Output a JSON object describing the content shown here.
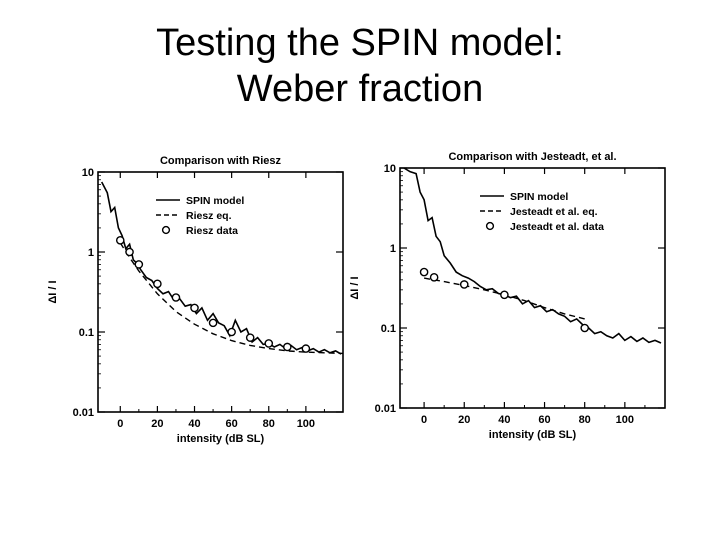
{
  "slide": {
    "title_line1": "Testing the SPIN model:",
    "title_line2": "Weber fraction"
  },
  "chart_data": [
    {
      "type": "line",
      "title": "Comparison with Riesz",
      "xlabel": "intensity (dB SL)",
      "ylabel": "ΔI / I",
      "x_ticks": [
        "0",
        "20",
        "40",
        "60",
        "80",
        "100"
      ],
      "y_ticks": [
        "0.01",
        "0.1",
        "1",
        "10"
      ],
      "xlim": [
        -12,
        120
      ],
      "ylim": [
        0.01,
        10
      ],
      "y_scale": "log",
      "legend_position": "top-right",
      "series": [
        {
          "name": "SPIN model",
          "style": "solid",
          "x": [
            -10,
            -7,
            -5,
            -3,
            -1,
            1,
            3,
            5,
            7,
            9,
            11,
            14,
            17,
            20,
            23,
            26,
            29,
            32,
            35,
            38,
            41,
            44,
            47,
            50,
            53,
            56,
            59,
            62,
            65,
            68,
            71,
            74,
            77,
            80,
            83,
            86,
            89,
            92,
            95,
            98,
            101,
            104,
            107,
            110,
            113,
            116,
            119
          ],
          "y": [
            7.5,
            5.5,
            3.2,
            3.6,
            2.0,
            1.6,
            1.1,
            1.25,
            0.8,
            0.72,
            0.6,
            0.48,
            0.44,
            0.35,
            0.3,
            0.32,
            0.25,
            0.26,
            0.21,
            0.22,
            0.17,
            0.2,
            0.14,
            0.17,
            0.13,
            0.12,
            0.09,
            0.14,
            0.1,
            0.11,
            0.075,
            0.085,
            0.07,
            0.072,
            0.065,
            0.07,
            0.062,
            0.068,
            0.06,
            0.064,
            0.058,
            0.062,
            0.056,
            0.06,
            0.055,
            0.058,
            0.053
          ]
        },
        {
          "name": "Riesz eq.",
          "style": "dashed",
          "x": [
            0,
            5,
            10,
            20,
            30,
            40,
            50,
            60,
            70,
            80,
            90,
            100,
            110,
            120
          ],
          "y": [
            1.3,
            0.85,
            0.58,
            0.3,
            0.18,
            0.125,
            0.095,
            0.078,
            0.068,
            0.062,
            0.058,
            0.056,
            0.055,
            0.054
          ]
        },
        {
          "name": "Riesz data",
          "style": "circles",
          "x": [
            0,
            5,
            10,
            20,
            30,
            40,
            50,
            60,
            70,
            80,
            90,
            100
          ],
          "y": [
            1.4,
            1.0,
            0.7,
            0.4,
            0.27,
            0.2,
            0.13,
            0.1,
            0.085,
            0.072,
            0.065,
            0.062
          ]
        }
      ]
    },
    {
      "type": "line",
      "title": "Comparison with Jesteadt, et al.",
      "xlabel": "intensity (dB SL)",
      "ylabel": "ΔI / I",
      "x_ticks": [
        "0",
        "20",
        "40",
        "60",
        "80",
        "100"
      ],
      "y_ticks": [
        "0.01",
        "0.1",
        "1",
        "10"
      ],
      "xlim": [
        -12,
        120
      ],
      "ylim": [
        0.01,
        10
      ],
      "y_scale": "log",
      "legend_position": "top-right",
      "series": [
        {
          "name": "SPIN model",
          "style": "solid",
          "x": [
            -10,
            -7,
            -4,
            -2,
            0,
            2,
            4,
            6,
            8,
            10,
            13,
            16,
            19,
            22,
            25,
            28,
            31,
            34,
            37,
            40,
            43,
            46,
            49,
            52,
            55,
            58,
            61,
            64,
            67,
            70,
            73,
            76,
            79,
            82,
            85,
            88,
            91,
            94,
            97,
            100,
            103,
            106,
            109,
            112,
            115,
            118
          ],
          "y": [
            10,
            9,
            8.5,
            5.0,
            4.0,
            2.2,
            2.4,
            1.4,
            1.2,
            0.8,
            0.65,
            0.5,
            0.45,
            0.42,
            0.38,
            0.33,
            0.3,
            0.31,
            0.27,
            0.26,
            0.24,
            0.25,
            0.2,
            0.22,
            0.18,
            0.19,
            0.16,
            0.17,
            0.15,
            0.14,
            0.12,
            0.13,
            0.11,
            0.1,
            0.085,
            0.09,
            0.08,
            0.075,
            0.085,
            0.07,
            0.078,
            0.068,
            0.075,
            0.066,
            0.07,
            0.065
          ]
        },
        {
          "name": "Jesteadt et al. eq.",
          "style": "dashed",
          "x": [
            0,
            10,
            20,
            30,
            40,
            50,
            60,
            70,
            80
          ],
          "y": [
            0.42,
            0.38,
            0.34,
            0.3,
            0.26,
            0.22,
            0.18,
            0.15,
            0.13
          ]
        },
        {
          "name": "Jesteadt et al. data",
          "style": "circles",
          "x": [
            0,
            5,
            20,
            40,
            80
          ],
          "y": [
            0.5,
            0.43,
            0.35,
            0.26,
            0.1
          ]
        }
      ]
    }
  ]
}
